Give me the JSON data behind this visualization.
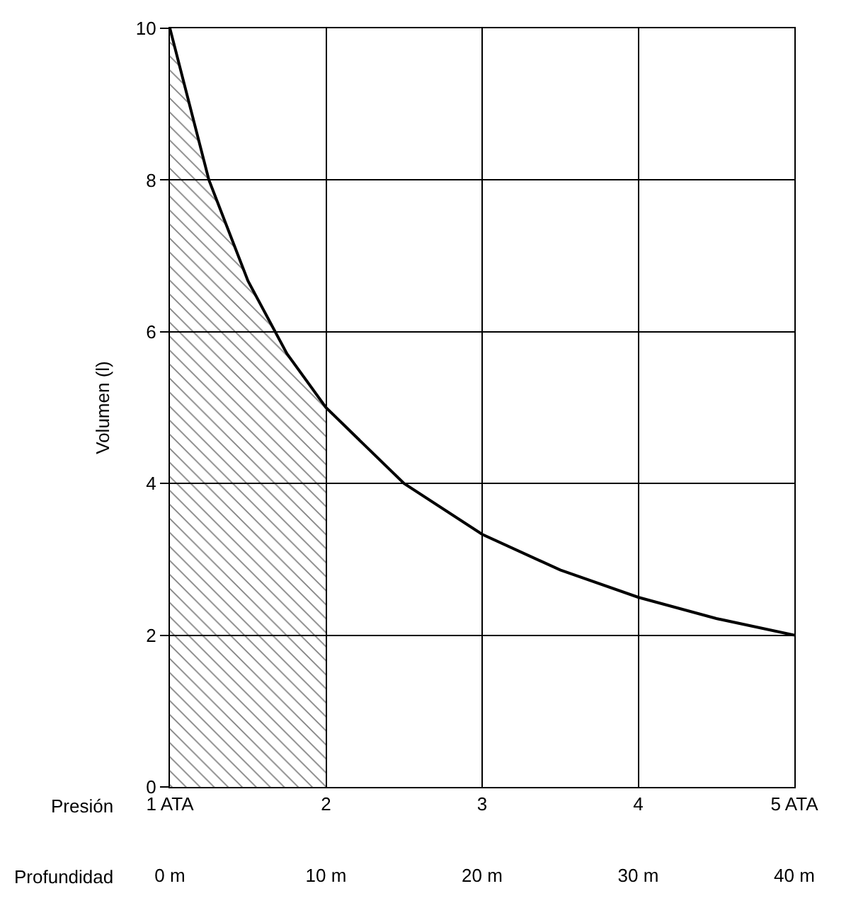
{
  "chart_data": {
    "type": "line",
    "xlabel": "Presión",
    "ylabel": "Volumen (l)",
    "x2label": "Profundidad",
    "xlim": [
      1,
      5
    ],
    "xticks": [
      {
        "value": 1,
        "label": "1 ATA"
      },
      2,
      3,
      4,
      {
        "value": 5,
        "label": "5 ATA"
      }
    ],
    "x2lim": [
      0,
      40
    ],
    "x2ticks": [
      {
        "value": 0,
        "label": "0 m"
      },
      {
        "value": 10,
        "label": "10 m"
      },
      {
        "value": 20,
        "label": "20 m"
      },
      {
        "value": 30,
        "label": "30 m"
      },
      {
        "value": 40,
        "label": "40 m"
      }
    ],
    "ylim": [
      0,
      10
    ],
    "yticks": [
      0,
      2,
      4,
      6,
      8,
      10
    ],
    "grid": true,
    "series": [
      {
        "type": "area",
        "color": "#000000",
        "x": [
          1,
          1.25,
          1.5,
          1.75,
          2
        ],
        "values": [
          10,
          8,
          6.67,
          5.71,
          5
        ]
      },
      {
        "color": "#000000",
        "x": [
          1,
          1.25,
          1.5,
          1.75,
          2,
          2.5,
          3,
          3.5,
          4,
          4.5,
          5
        ],
        "values": [
          10,
          8,
          6.67,
          5.71,
          5,
          4,
          3.33,
          2.86,
          2.5,
          2.22,
          2
        ]
      }
    ]
  }
}
